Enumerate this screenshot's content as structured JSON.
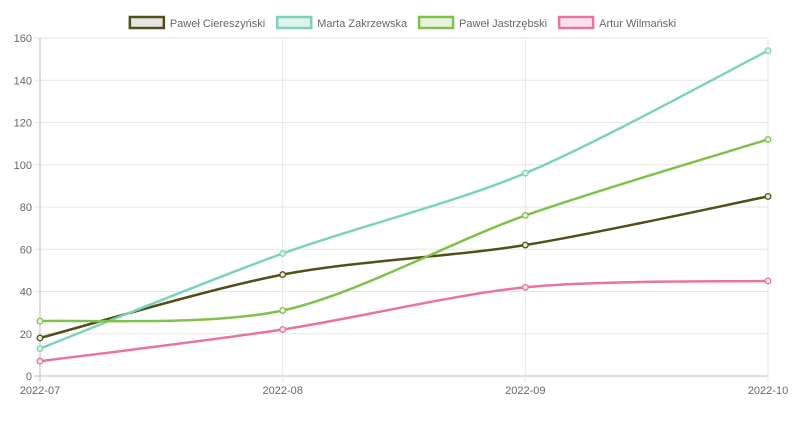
{
  "chart_data": {
    "type": "line",
    "categories": [
      "2022-07",
      "2022-08",
      "2022-09",
      "2022-10"
    ],
    "series": [
      {
        "name": "Paweł Ciereszyński",
        "values": [
          18,
          48,
          62,
          85
        ],
        "color": "#52501a",
        "fill": "#e6e6e0"
      },
      {
        "name": "Marta Zakrzewska",
        "values": [
          13,
          58,
          96,
          154
        ],
        "color": "#7dd3b8",
        "fill": "#dff2ec"
      },
      {
        "name": "Paweł Jastrzębski",
        "values": [
          26,
          31,
          76,
          112
        ],
        "color": "#80c14c",
        "fill": "#e8f2df"
      },
      {
        "name": "Artur Wilmański",
        "values": [
          7,
          22,
          42,
          45
        ],
        "color": "#e8739e",
        "fill": "#f8e2eb"
      }
    ],
    "yticks": [
      0,
      20,
      40,
      60,
      80,
      100,
      120,
      140,
      160
    ],
    "ylim": [
      0,
      160
    ],
    "grid": true,
    "legend_position": "top"
  }
}
